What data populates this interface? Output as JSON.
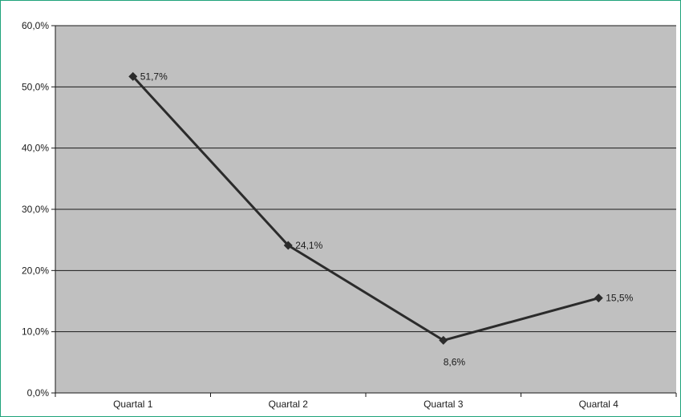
{
  "chart_data": {
    "type": "line",
    "categories": [
      "Quartal 1",
      "Quartal 2",
      "Quartal 3",
      "Quartal 4"
    ],
    "series": [
      {
        "values": [
          51.7,
          24.1,
          8.6,
          15.5
        ],
        "labels": [
          "51,7%",
          "24,1%",
          "8,6%",
          "15,5%"
        ]
      }
    ],
    "yticks": [
      0,
      10,
      20,
      30,
      40,
      50,
      60
    ],
    "ytick_labels": [
      "0,0%",
      "10,0%",
      "20,0%",
      "30,0%",
      "40,0%",
      "50,0%",
      "60,0%"
    ],
    "ylim": [
      0,
      60
    ],
    "grid": true,
    "legend": "none",
    "colors": {
      "plot_background": "#c0c0c0",
      "gridline": "#1a1a1a",
      "line": "#2b2b2b",
      "marker": "#2b2b2b",
      "frame_border": "#1fa37a"
    },
    "marker": "diamond"
  }
}
